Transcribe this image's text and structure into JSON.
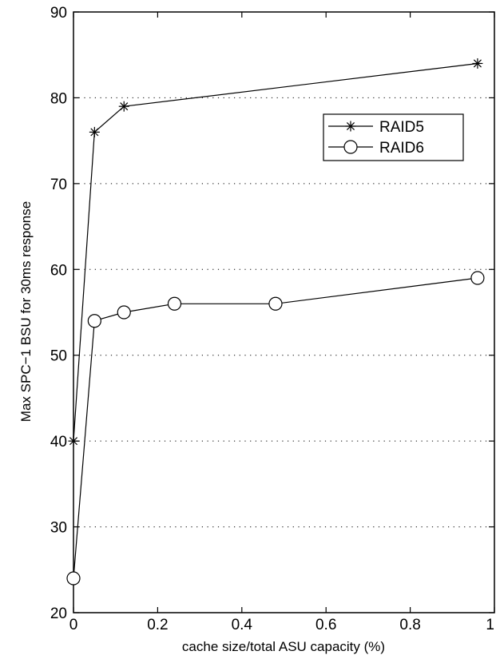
{
  "chart_data": {
    "type": "line",
    "xlabel": "cache size/total ASU capacity (%)",
    "ylabel": "Max SPC−1 BSU for 30ms response",
    "xlim": [
      0,
      1
    ],
    "ylim": [
      20,
      90
    ],
    "x_ticks": [
      0,
      0.2,
      0.4,
      0.6,
      0.8,
      1
    ],
    "x_tick_labels": [
      "0",
      "0.2",
      "0.4",
      "0.6",
      "0.8",
      "1"
    ],
    "y_ticks": [
      20,
      30,
      40,
      50,
      60,
      70,
      80,
      90
    ],
    "y_tick_labels": [
      "20",
      "30",
      "40",
      "50",
      "60",
      "70",
      "80",
      "90"
    ],
    "grid": "horizontal dotted",
    "legend_position": "upper-right",
    "series": [
      {
        "name": "RAID5",
        "marker": "asterisk",
        "x": [
          0,
          0.05,
          0.12,
          0.96
        ],
        "values": [
          40,
          76,
          79,
          84
        ]
      },
      {
        "name": "RAID6",
        "marker": "circle",
        "x": [
          0,
          0.05,
          0.12,
          0.24,
          0.48,
          0.96
        ],
        "values": [
          24,
          54,
          55,
          56,
          56,
          59
        ]
      }
    ]
  }
}
